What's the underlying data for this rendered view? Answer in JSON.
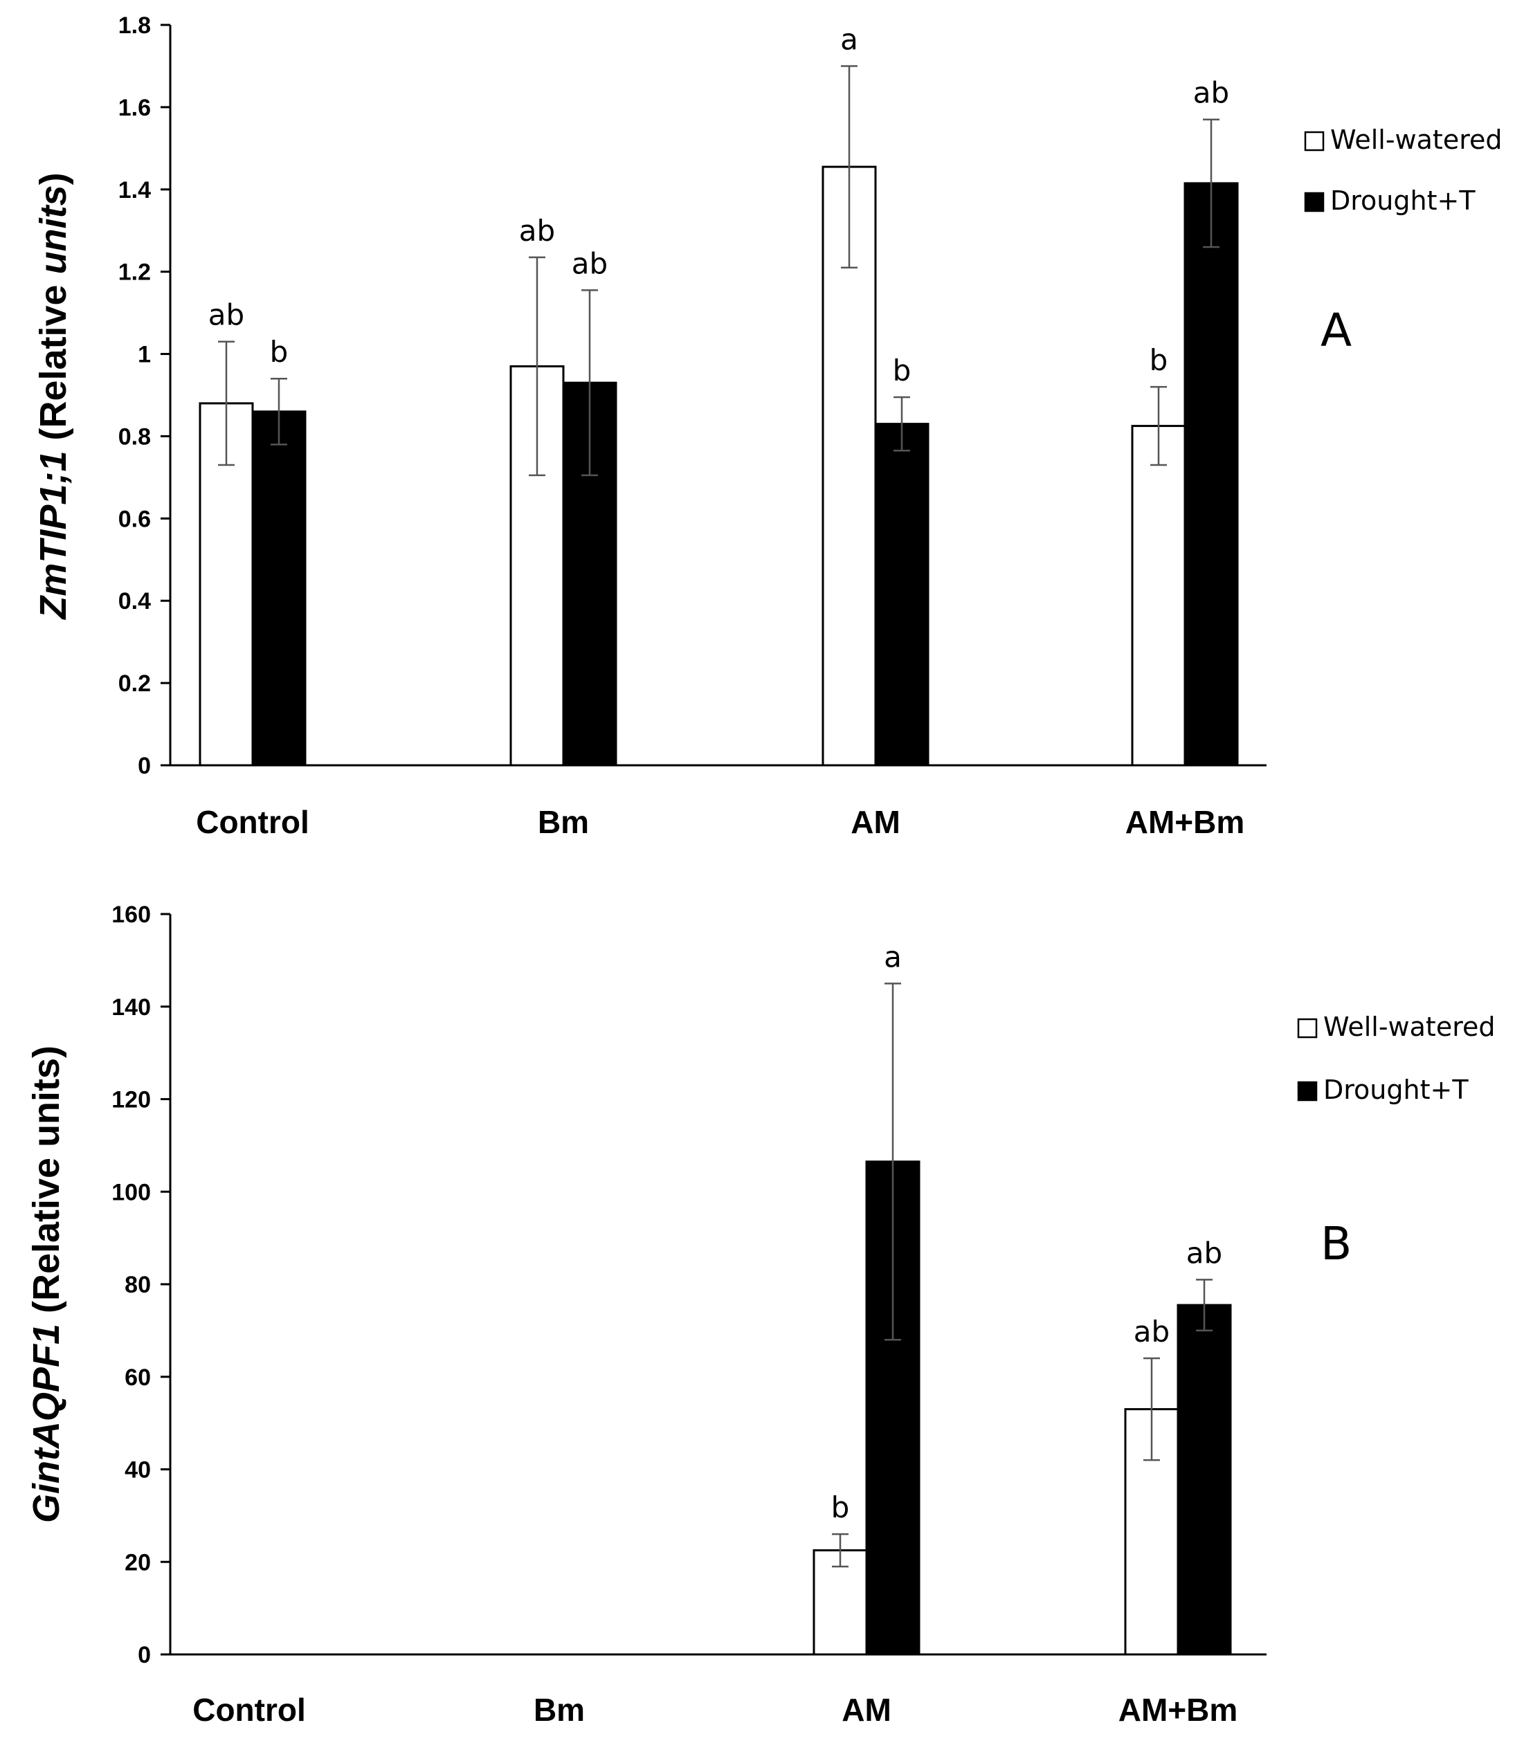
{
  "chart_data": [
    {
      "type": "bar",
      "panel_label": "A",
      "ylabel_italic": "ZmTIP1;1",
      "ylabel_rest": " (Relative ",
      "ylabel_units": "units",
      "ylabel_close": ")",
      "categories": [
        "Control",
        "Bm",
        "AM",
        "AM+Bm"
      ],
      "ylim": [
        0,
        1.8
      ],
      "yticks": [
        "0",
        "0.2",
        "0.4",
        "0.6",
        "0.8",
        "1",
        "1.2",
        "1.4",
        "1.6",
        "1.8"
      ],
      "series": [
        {
          "name": "Well-watered",
          "color": "#ffffff",
          "values": [
            0.88,
            0.97,
            1.455,
            0.825
          ],
          "errors": [
            0.15,
            0.265,
            0.245,
            0.095
          ],
          "letters": [
            "ab",
            "ab",
            "a",
            "b"
          ]
        },
        {
          "name": "Drought+T",
          "color": "#000000",
          "values": [
            0.86,
            0.93,
            0.83,
            1.415
          ],
          "errors": [
            0.08,
            0.225,
            0.065,
            0.155
          ],
          "letters": [
            "b",
            "ab",
            "b",
            "ab"
          ]
        }
      ],
      "legend": [
        "Well-watered",
        "Drought+T"
      ]
    },
    {
      "type": "bar",
      "panel_label": "B",
      "ylabel_italic": "GintAQPF1",
      "ylabel_rest": " (Relative units)",
      "categories": [
        "Control",
        "Bm",
        "AM",
        "AM+Bm"
      ],
      "ylim": [
        0,
        160
      ],
      "yticks": [
        "0",
        "20",
        "40",
        "60",
        "80",
        "100",
        "120",
        "140",
        "160"
      ],
      "series": [
        {
          "name": "Well-watered",
          "color": "#ffffff",
          "values": [
            null,
            null,
            22.5,
            53
          ],
          "errors": [
            null,
            null,
            3.5,
            11
          ],
          "letters": [
            "",
            "",
            "b",
            "ab"
          ]
        },
        {
          "name": "Drought+T",
          "color": "#000000",
          "values": [
            null,
            null,
            106.5,
            75.5
          ],
          "errors": [
            null,
            null,
            38.5,
            5.5
          ],
          "letters": [
            "",
            "",
            "a",
            "ab"
          ]
        }
      ],
      "legend": [
        "Well-watered",
        "Drought+T"
      ]
    }
  ]
}
